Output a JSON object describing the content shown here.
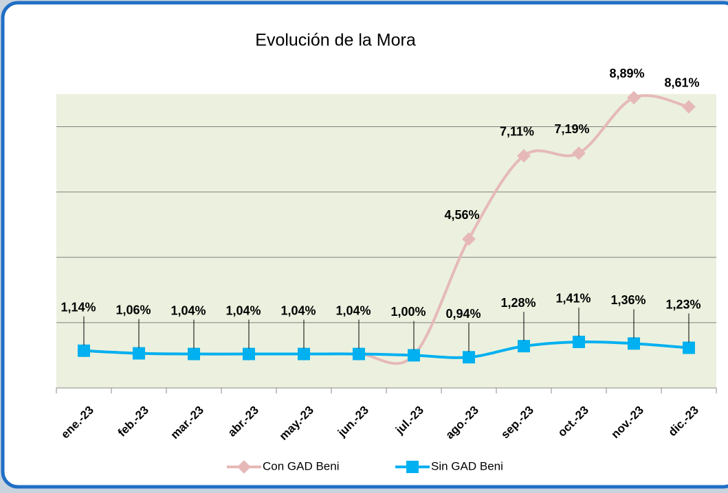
{
  "chart_data": {
    "type": "line",
    "title": "Evolución de la Mora",
    "categories": [
      "ene.-23",
      "feb.-23",
      "mar.-23",
      "abr.-23",
      "may.-23",
      "jun.-23",
      "jul.-23",
      "ago.-23",
      "sep.-23",
      "oct.-23",
      "nov.-23",
      "dic.-23"
    ],
    "series": [
      {
        "name": "Con GAD Beni",
        "color": "#e6b9b8",
        "values": [
          1.14,
          1.06,
          1.04,
          1.04,
          1.04,
          1.04,
          1.0,
          4.56,
          7.11,
          7.19,
          8.89,
          8.61
        ],
        "value_labels": [
          null,
          null,
          null,
          null,
          null,
          null,
          null,
          "4,56%",
          "7,11%",
          "7,19%",
          "8,89%",
          "8,61%"
        ]
      },
      {
        "name": "Sin GAD Beni",
        "color": "#00b0f0",
        "values": [
          1.14,
          1.06,
          1.04,
          1.04,
          1.04,
          1.04,
          1.0,
          0.94,
          1.28,
          1.41,
          1.36,
          1.23
        ],
        "value_labels": [
          "1,14%",
          "1,06%",
          "1,04%",
          "1,04%",
          "1,04%",
          "1,04%",
          "1,00%",
          "0,94%",
          "1,28%",
          "1,41%",
          "1,36%",
          "1,23%"
        ]
      }
    ],
    "ylim": [
      0,
      9
    ],
    "yticks": [
      0,
      2,
      4,
      6,
      8
    ],
    "grid": true,
    "legend": "bottom"
  }
}
